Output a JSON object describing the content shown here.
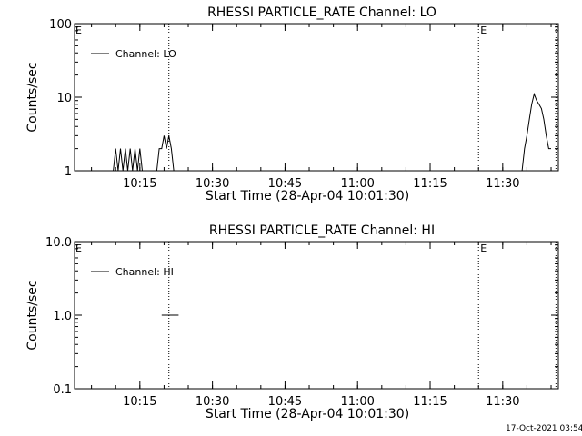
{
  "chart_data": [
    {
      "type": "line",
      "title": "RHESSI PARTICLE_RATE Channel: LO",
      "xlabel": "Start Time (28-Apr-04 10:01:30)",
      "ylabel": "Counts/sec",
      "yscale": "log",
      "ylim": [
        1,
        100
      ],
      "xlim": [
        "10:01:30",
        "11:41:30"
      ],
      "x_ticks": [
        "10:15",
        "10:30",
        "10:45",
        "11:00",
        "11:15",
        "11:30"
      ],
      "y_ticks": [
        "1",
        "10",
        "100"
      ],
      "legend": "top-left",
      "grid": false,
      "series": [
        {
          "name": "Channel: LO",
          "x": [
            "10:09:30",
            "10:10:00",
            "10:10:30",
            "10:11:00",
            "10:11:30",
            "10:12:00",
            "10:12:30",
            "10:13:00",
            "10:13:30",
            "10:14:00",
            "10:14:30",
            "10:15:00",
            "10:15:30",
            "10:16:00",
            "10:16:30",
            "10:17:00",
            "10:17:30",
            "10:18:00",
            "10:18:30",
            "10:19:00",
            "10:19:30",
            "10:20:00",
            "10:20:30",
            "10:21:00",
            "10:21:30",
            "10:22:00",
            "11:34:00",
            "11:34:30",
            "11:35:00",
            "11:35:30",
            "11:36:00",
            "11:36:30",
            "11:37:00",
            "11:37:30",
            "11:38:00",
            "11:38:30",
            "11:39:00",
            "11:39:30",
            "11:40:00"
          ],
          "y": [
            1,
            2,
            1,
            2,
            1,
            2,
            1,
            2,
            1,
            2,
            1,
            2,
            1,
            1,
            1,
            1,
            1,
            1,
            1,
            2,
            2,
            3,
            2,
            3,
            2,
            1,
            1,
            2,
            3,
            5,
            8,
            11,
            9,
            8,
            7,
            5,
            3,
            2,
            2
          ]
        }
      ],
      "markers": [
        {
          "x": "10:21:00",
          "label": ""
        },
        {
          "x": "11:25:00",
          "label": "E"
        },
        {
          "x": "11:41:00",
          "label": ""
        }
      ],
      "corner_label": "E"
    },
    {
      "type": "line",
      "title": "RHESSI PARTICLE_RATE Channel: HI",
      "xlabel": "Start Time (28-Apr-04 10:01:30)",
      "ylabel": "Counts/sec",
      "yscale": "log",
      "ylim": [
        0.1,
        10
      ],
      "xlim": [
        "10:01:30",
        "11:41:30"
      ],
      "x_ticks": [
        "10:15",
        "10:30",
        "10:45",
        "11:00",
        "11:15",
        "11:30"
      ],
      "y_ticks": [
        "0.1",
        "1.0",
        "10.0"
      ],
      "legend": "top-left",
      "grid": false,
      "series": [
        {
          "name": "Channel: HI",
          "x": [
            "10:19:30",
            "10:20:00",
            "10:20:30",
            "10:21:00",
            "10:21:30",
            "10:22:00",
            "10:22:30",
            "10:23:00"
          ],
          "y": [
            1,
            1,
            1,
            1,
            1,
            1,
            1,
            1
          ]
        }
      ],
      "markers": [
        {
          "x": "10:21:00",
          "label": ""
        },
        {
          "x": "11:25:00",
          "label": "E"
        },
        {
          "x": "11:41:00",
          "label": ""
        }
      ],
      "corner_label": "E"
    }
  ],
  "timestamp": "17-Oct-2021 03:54"
}
